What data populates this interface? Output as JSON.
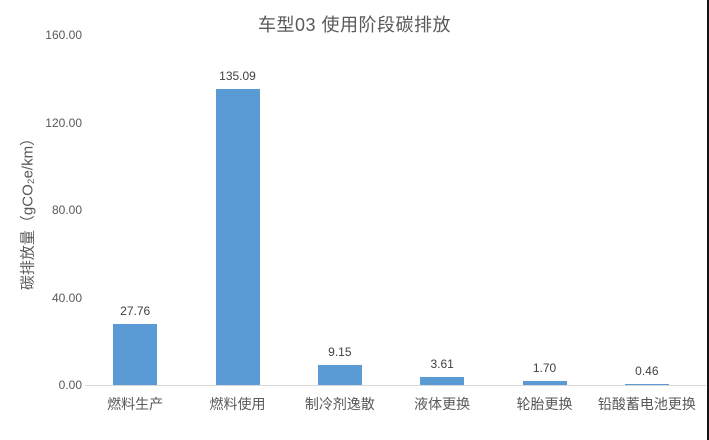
{
  "chart_data": {
    "type": "bar",
    "title": "车型03 使用阶段碳排放",
    "ylabel": "碳排放量（gCO₂e/km）",
    "xlabel": "",
    "categories": [
      "燃料生产",
      "燃料使用",
      "制冷剂逸散",
      "液体更换",
      "轮胎更换",
      "铅酸蓄电池更换"
    ],
    "values": [
      27.76,
      135.09,
      9.15,
      3.61,
      1.7,
      0.46
    ],
    "value_labels": [
      "27.76",
      "135.09",
      "9.15",
      "3.61",
      "1.70",
      "0.46"
    ],
    "ytick_values": [
      0,
      40,
      80,
      120,
      160
    ],
    "ytick_labels": [
      "0.00",
      "40.00",
      "80.00",
      "120.00",
      "160.00"
    ],
    "ylim": [
      0,
      160
    ],
    "grid": false,
    "legend": false,
    "bar_color": "#5b9bd5"
  },
  "colors": {
    "bar": "#5b9bd5",
    "text": "#595959",
    "value_label_text": "#404040",
    "axis_line": "#d9d9d9",
    "right_edge_line": "#151515"
  }
}
